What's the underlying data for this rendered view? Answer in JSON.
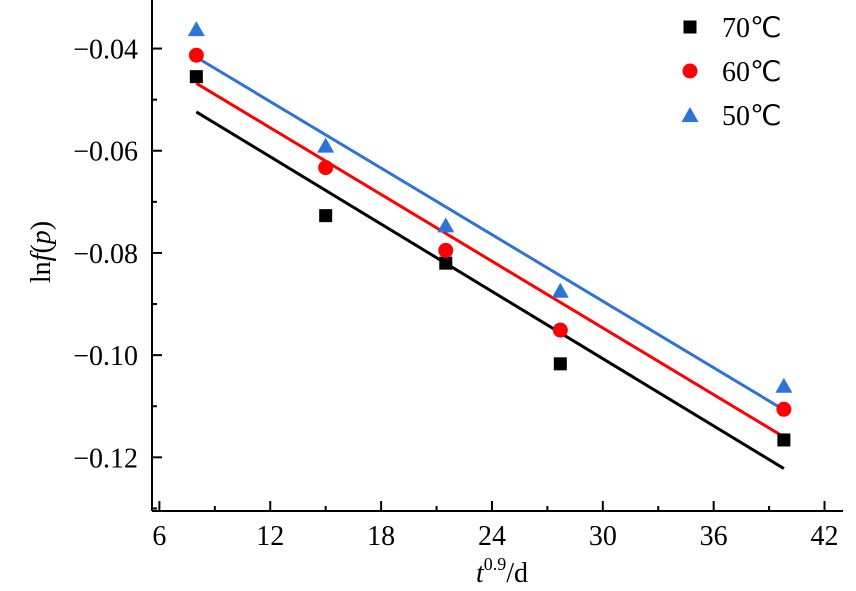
{
  "chart_data": {
    "type": "scatter",
    "xlabel": {
      "base": "t",
      "sup": "0.9",
      "rest": "/d"
    },
    "ylabel": {
      "prefix": "ln",
      "f": "f",
      "open": "(",
      "p": "p",
      "close": ")"
    },
    "xlim": [
      5.6,
      43
    ],
    "ylim": [
      -0.1305,
      -0.0305
    ],
    "xticks": [
      6,
      12,
      18,
      24,
      30,
      36,
      42
    ],
    "xtick_labels": [
      "6",
      "12",
      "18",
      "24",
      "30",
      "36",
      "42"
    ],
    "yticks": [
      -0.04,
      -0.06,
      -0.08,
      -0.1,
      -0.12
    ],
    "ytick_labels": [
      "−0.04",
      "−0.06",
      "−0.08",
      "−0.10",
      "−0.12"
    ],
    "legend_position": "top-right",
    "grid": false,
    "series": [
      {
        "name": "70℃",
        "marker": "square",
        "color": "#000000",
        "x": [
          8.0,
          15.0,
          21.5,
          27.7,
          39.8
        ],
        "y": [
          -0.0455,
          -0.0727,
          -0.082,
          -0.1017,
          -0.1166
        ],
        "fit": {
          "x": [
            8.0,
            39.8
          ],
          "y": [
            -0.0524,
            -0.1222
          ]
        }
      },
      {
        "name": "60℃",
        "marker": "circle",
        "color": "#ff0000",
        "x": [
          8.0,
          15.0,
          21.5,
          27.7,
          39.8
        ],
        "y": [
          -0.0413,
          -0.0633,
          -0.0795,
          -0.0951,
          -0.1106
        ],
        "fit": {
          "x": [
            8.0,
            39.8
          ],
          "y": [
            -0.0468,
            -0.116
          ]
        }
      },
      {
        "name": "50℃",
        "marker": "triangle",
        "color": "#2e73d6",
        "x": [
          8.0,
          15.0,
          21.5,
          27.7,
          39.8
        ],
        "y": [
          -0.0362,
          -0.059,
          -0.0746,
          -0.0874,
          -0.106
        ],
        "fit": {
          "x": [
            8.0,
            39.8
          ],
          "y": [
            -0.0417,
            -0.1107
          ]
        }
      }
    ]
  }
}
